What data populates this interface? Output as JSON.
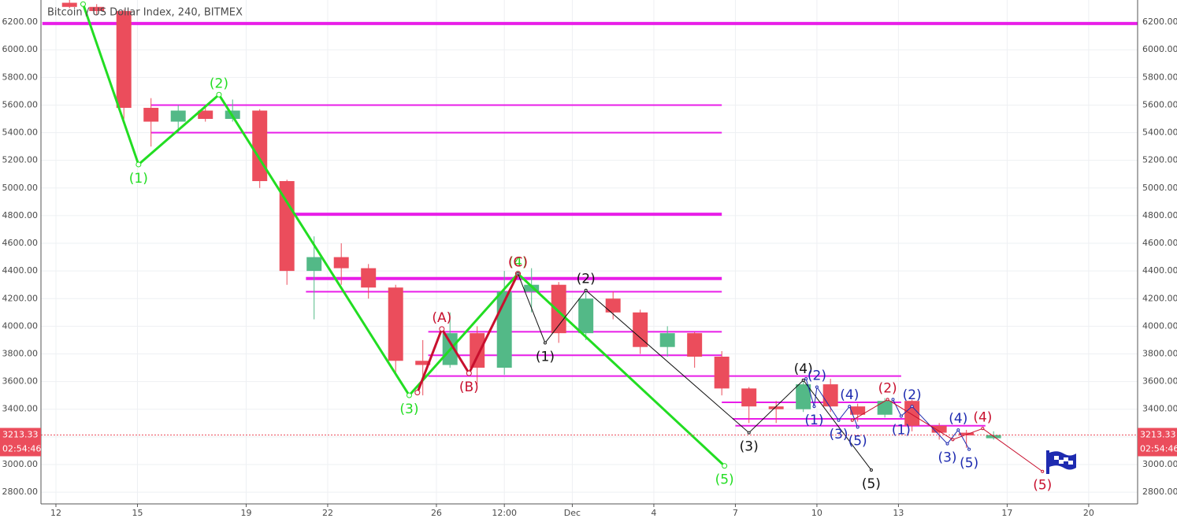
{
  "chart_data": {
    "type": "candlestick",
    "title": "Bitcoin / US Dollar Index, 240, BITMEX",
    "x": [
      12,
      13,
      14,
      15,
      16,
      17,
      18,
      19,
      20,
      21,
      22,
      23,
      24,
      25,
      26,
      27,
      28,
      29,
      30,
      31,
      32,
      33,
      34,
      35,
      36,
      37,
      38,
      39,
      40,
      41,
      42,
      43,
      44,
      45,
      46
    ],
    "open": [
      6340,
      6310,
      6280,
      5580,
      5480,
      5560,
      5500,
      5560,
      5050,
      4400,
      4500,
      4420,
      4280,
      3750,
      3720,
      3950,
      3700,
      4250,
      4300,
      3950,
      4200,
      4100,
      3850,
      3950,
      3780,
      3550,
      3420,
      3400,
      3580,
      3420,
      3360,
      3460,
      3280,
      3230,
      3190
    ],
    "high": [
      6360,
      6330,
      6290,
      5650,
      5600,
      5600,
      5640,
      5570,
      5060,
      4650,
      4600,
      4450,
      4300,
      3900,
      4100,
      4000,
      4400,
      4420,
      4320,
      4250,
      4250,
      4120,
      4000,
      3960,
      3820,
      3560,
      3460,
      3620,
      3620,
      3440,
      3480,
      3470,
      3300,
      3250,
      3240
    ],
    "low": [
      6300,
      6250,
      5500,
      5300,
      5400,
      5480,
      5480,
      5000,
      4300,
      4050,
      4300,
      4200,
      3650,
      3500,
      3700,
      3580,
      3650,
      4100,
      3880,
      3900,
      4050,
      3800,
      3780,
      3700,
      3500,
      3300,
      3300,
      3380,
      3380,
      3310,
      3340,
      3240,
      3180,
      3120,
      3180
    ],
    "close": [
      6310,
      6280,
      5580,
      5480,
      5560,
      5500,
      5560,
      5050,
      4400,
      4500,
      4420,
      4280,
      3750,
      3720,
      3950,
      3700,
      4250,
      4300,
      3950,
      4200,
      4100,
      3850,
      3950,
      3780,
      3550,
      3420,
      3400,
      3580,
      3420,
      3360,
      3460,
      3280,
      3230,
      3210,
      3213.33
    ],
    "up_color": "#53b987",
    "down_color": "#eb4d5c",
    "xlim": [
      11.45,
      51.8
    ],
    "xticks": [
      12,
      15,
      19,
      22,
      26,
      {
        "value": 28.5,
        "label": "12:00"
      },
      {
        "value": 31,
        "label": "Dec"
      },
      {
        "value": 34,
        "label": "4"
      },
      {
        "value": 37,
        "label": "7"
      },
      {
        "value": 40,
        "label": "10"
      },
      {
        "value": 43,
        "label": "13"
      },
      {
        "value": 47,
        "label": "17"
      },
      {
        "value": 50,
        "label": "20"
      }
    ],
    "ylim": [
      2715,
      6360
    ],
    "yticks": [
      {
        "value": 2800,
        "label": "2800.00"
      },
      {
        "value": 3000,
        "label": "3000.00"
      },
      {
        "value": 3200,
        "label": "3200.00"
      },
      {
        "value": 3400,
        "label": "3400.00"
      },
      {
        "value": 3600,
        "label": "3600.00"
      },
      {
        "value": 3800,
        "label": "3800.00"
      },
      {
        "value": 4000,
        "label": "4000.00"
      },
      {
        "value": 4200,
        "label": "4200.00"
      },
      {
        "value": 4400,
        "label": "4400.00"
      },
      {
        "value": 4600,
        "label": "4600.00"
      },
      {
        "value": 4800,
        "label": "4800.00"
      },
      {
        "value": 5000,
        "label": "5000.00"
      },
      {
        "value": 5200,
        "label": "5200.00"
      },
      {
        "value": 5400,
        "label": "5400.00"
      },
      {
        "value": 5600,
        "label": "5600.00"
      },
      {
        "value": 5800,
        "label": "5800.00"
      },
      {
        "value": 6000,
        "label": "6000.00"
      },
      {
        "value": 6200,
        "label": "6200.00"
      }
    ],
    "grid": true,
    "levels": [
      {
        "value": 6190,
        "from": 11.5,
        "to": 51.8,
        "color": "#e81ee8",
        "style": "thick"
      },
      {
        "value": 5600,
        "from": 15.5,
        "to": 36.5,
        "color": "#e81ee8",
        "style": "thin"
      },
      {
        "value": 5400,
        "from": 15.5,
        "to": 36.5,
        "color": "#e81ee8",
        "style": "thin"
      },
      {
        "value": 4810,
        "from": 20.5,
        "to": 36.5,
        "color": "#e81ee8",
        "style": "thick"
      },
      {
        "value": 4345,
        "from": 21.2,
        "to": 36.5,
        "color": "#e81ee8",
        "style": "thick"
      },
      {
        "value": 4250,
        "from": 21.2,
        "to": 36.5,
        "color": "#e81ee8",
        "style": "thin"
      },
      {
        "value": 3960,
        "from": 25.7,
        "to": 36.5,
        "color": "#e81ee8",
        "style": "thin"
      },
      {
        "value": 3790,
        "from": 25.7,
        "to": 36.5,
        "color": "#e81ee8",
        "style": "thin"
      },
      {
        "value": 3640,
        "from": 25.7,
        "to": 43.1,
        "color": "#e81ee8",
        "style": "thin"
      },
      {
        "value": 3450,
        "from": 36.5,
        "to": 43.1,
        "color": "#e81ee8",
        "style": "thin"
      },
      {
        "value": 3330,
        "from": 36.9,
        "to": 43.5,
        "color": "#e81ee8",
        "style": "thin"
      },
      {
        "value": 3280,
        "from": 37.0,
        "to": 46.2,
        "color": "#e81ee8",
        "style": "thin"
      }
    ],
    "waves": [
      {
        "color": "#22dd22",
        "style": "thick",
        "points": [
          {
            "x": 13.0,
            "y": 6330,
            "label": null
          },
          {
            "x": 15.04,
            "y": 5170,
            "label": "(1)"
          },
          {
            "x": 18.0,
            "y": 5675,
            "label": "(2)"
          },
          {
            "x": 25.0,
            "y": 3500,
            "label": "(3)"
          },
          {
            "x": 29.0,
            "y": 4380,
            "label": "(4)"
          },
          {
            "x": 36.6,
            "y": 2990,
            "label": "(5)"
          }
        ]
      },
      {
        "color": "#c8102e",
        "style": "thick",
        "points": [
          {
            "x": 25.3,
            "y": 3520,
            "label": null
          },
          {
            "x": 26.2,
            "y": 3980,
            "label": "(A)"
          },
          {
            "x": 27.2,
            "y": 3660,
            "label": "(B)"
          },
          {
            "x": 29.0,
            "y": 4380,
            "label": "(C)"
          }
        ]
      },
      {
        "color": "#111111",
        "style": "thin",
        "points": [
          {
            "x": 29.0,
            "y": 4380,
            "label": null
          },
          {
            "x": 30.0,
            "y": 3880,
            "label": "(1)"
          },
          {
            "x": 31.5,
            "y": 4260,
            "label": "(2)"
          },
          {
            "x": 37.5,
            "y": 3230,
            "label": "(3)"
          },
          {
            "x": 39.5,
            "y": 3610,
            "label": "(4)"
          },
          {
            "x": 42.0,
            "y": 2960,
            "label": "(5)"
          }
        ]
      },
      {
        "color": "#1e2bb0",
        "style": "thin",
        "points": [
          {
            "x": 39.6,
            "y": 3620,
            "label": null
          },
          {
            "x": 39.9,
            "y": 3420,
            "label": "(1)"
          },
          {
            "x": 40.0,
            "y": 3560,
            "label": "(2)"
          },
          {
            "x": 40.8,
            "y": 3320,
            "label": "(3)"
          },
          {
            "x": 41.2,
            "y": 3420,
            "label": "(4)"
          },
          {
            "x": 41.5,
            "y": 3270,
            "label": "(5)"
          }
        ]
      },
      {
        "color": "#1e2bb0",
        "style": "thin",
        "points": [
          {
            "x": 42.8,
            "y": 3470,
            "label": null
          },
          {
            "x": 43.1,
            "y": 3350,
            "label": "(1)"
          },
          {
            "x": 43.5,
            "y": 3420,
            "label": "(2)"
          },
          {
            "x": 44.8,
            "y": 3150,
            "label": "(3)"
          },
          {
            "x": 45.2,
            "y": 3250,
            "label": "(4)"
          },
          {
            "x": 45.6,
            "y": 3110,
            "label": "(5)"
          }
        ]
      },
      {
        "color": "#c8102e",
        "style": "thin",
        "points": [
          {
            "x": 41.3,
            "y": 3320,
            "label": null
          },
          {
            "x": 42.6,
            "y": 3470,
            "label": "(2)"
          },
          {
            "x": 45.0,
            "y": 3180,
            "label": null
          },
          {
            "x": 46.1,
            "y": 3260,
            "label": "(4)"
          },
          {
            "x": 48.3,
            "y": 2950,
            "label": "(5)"
          }
        ]
      }
    ],
    "last_price": 3213.33,
    "countdown": "02:54:46"
  }
}
